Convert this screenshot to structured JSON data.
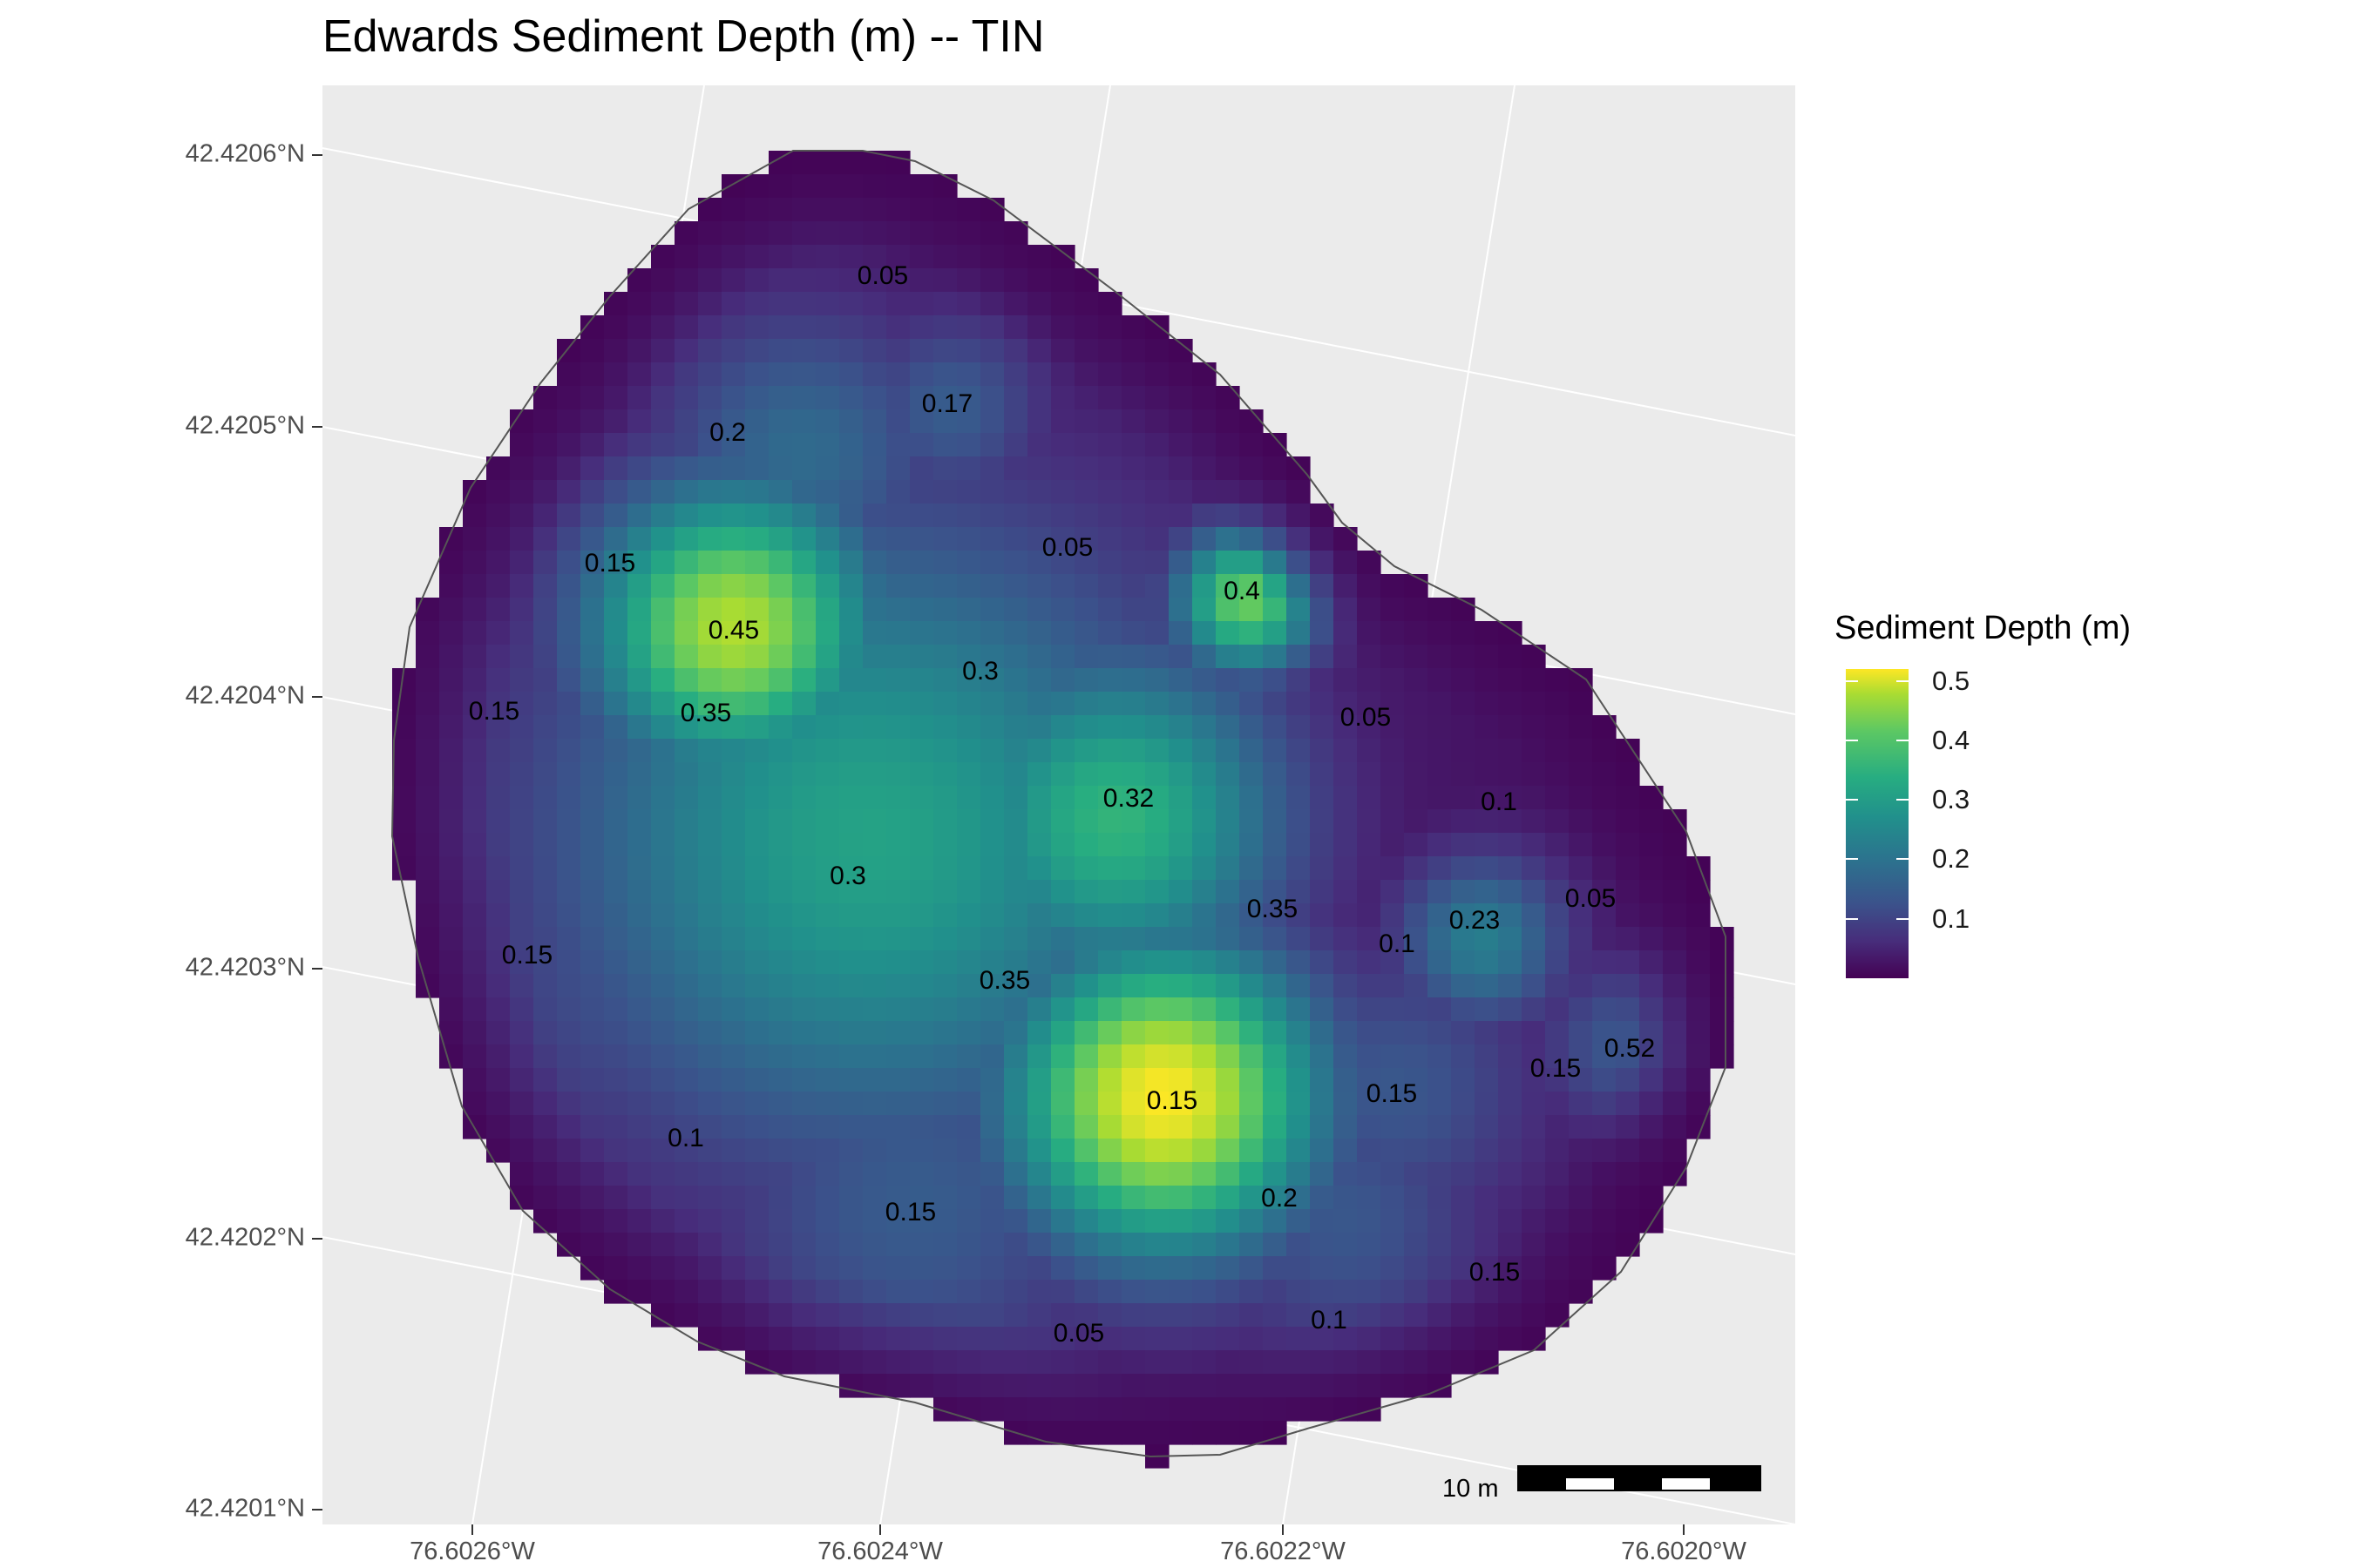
{
  "title": "Edwards Sediment Depth (m) -- TIN",
  "axes": {
    "y_ticks": [
      "42.4206°N",
      "42.4205°N",
      "42.4204°N",
      "42.4203°N",
      "42.4202°N",
      "42.4201°N"
    ],
    "x_ticks": [
      "76.6026°W",
      "76.6024°W",
      "76.6022°W",
      "76.6020°W"
    ]
  },
  "legend": {
    "title": "Sediment Depth (m)",
    "ticks": [
      "0.5",
      "0.4",
      "0.3",
      "0.2",
      "0.1"
    ],
    "tick_values": [
      0.5,
      0.4,
      0.3,
      0.2,
      0.1
    ],
    "range": [
      0.0,
      0.52
    ],
    "palette": "viridis",
    "colors": [
      "#440154",
      "#472D7B",
      "#3B528B",
      "#2C728E",
      "#21908C",
      "#27AD81",
      "#5DC863",
      "#AADC32",
      "#FDE725"
    ]
  },
  "scale_bar": {
    "label": "10 m"
  },
  "depth_labels": [
    "0.05",
    "0.17",
    "0.2",
    "0.05",
    "0.15",
    "0.4",
    "0.45",
    "0.3",
    "0.15",
    "0.35",
    "0.05",
    "0.1",
    "0.32",
    "0.3",
    "0.35",
    "0.05",
    "0.23",
    "0.1",
    "0.15",
    "0.35",
    "0.15",
    "0.15",
    "0.52",
    "0.15",
    "0.1",
    "0.15",
    "0.2",
    "0.15",
    "0.1",
    "0.05"
  ],
  "depth_label_values": [
    0.05,
    0.17,
    0.2,
    0.05,
    0.15,
    0.4,
    0.45,
    0.3,
    0.15,
    0.35,
    0.05,
    0.1,
    0.32,
    0.3,
    0.35,
    0.05,
    0.23,
    0.1,
    0.15,
    0.35,
    0.15,
    0.15,
    0.52,
    0.15,
    0.1,
    0.15,
    0.2,
    0.15,
    0.1,
    0.05
  ],
  "colors": {
    "panel_background": "#EBEBEB",
    "graticule": "#FFFFFF",
    "boundary": "#555555"
  }
}
